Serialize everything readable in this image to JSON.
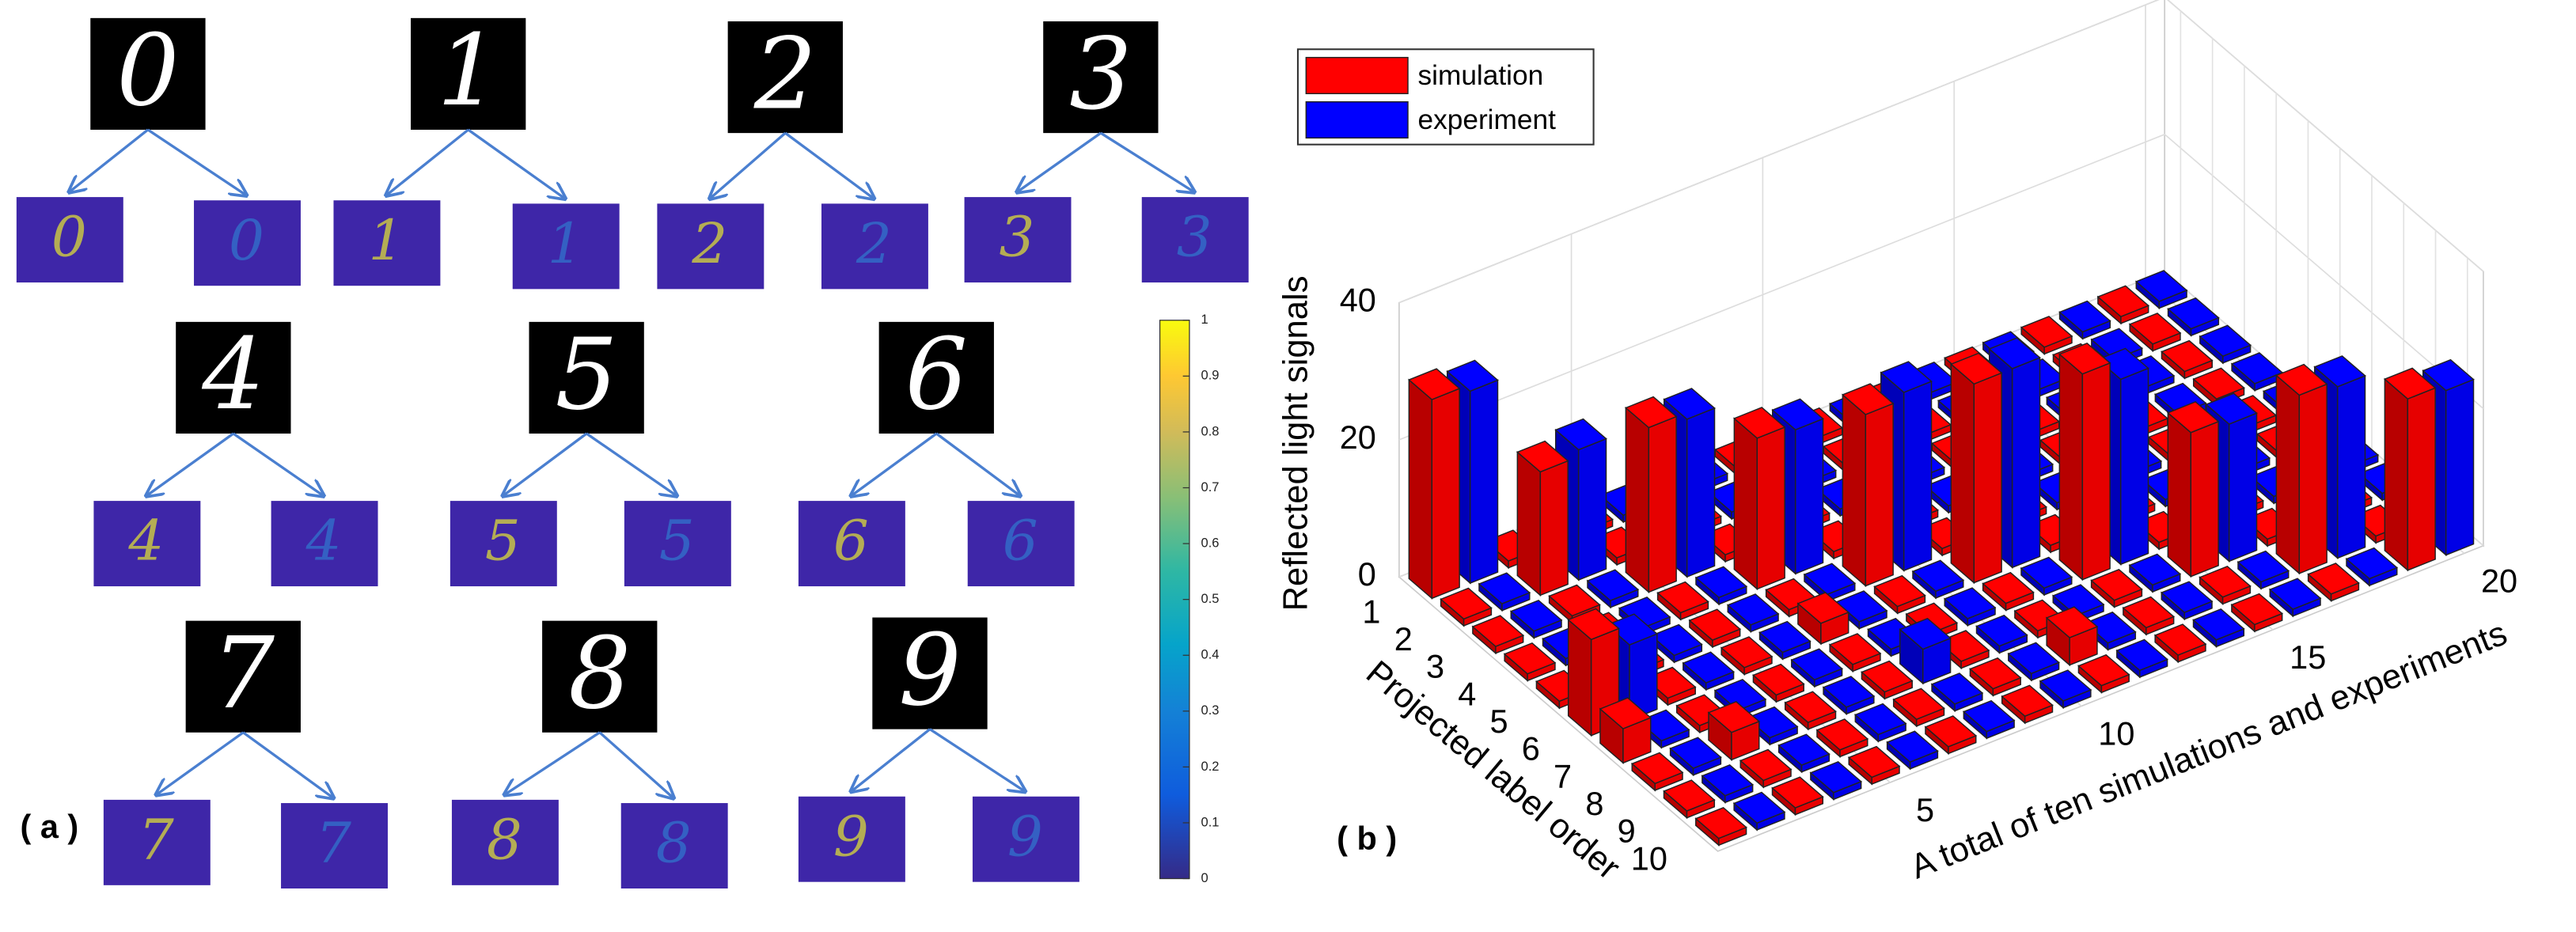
{
  "panel_a": {
    "label": "( a )",
    "digits": [
      "0",
      "1",
      "2",
      "3",
      "4",
      "5",
      "6",
      "7",
      "8",
      "9"
    ],
    "colorbar": {
      "clim": [
        0,
        1
      ],
      "ticks": [
        0,
        0.1,
        0.2,
        0.3,
        0.4,
        0.5,
        0.6,
        0.7,
        0.8,
        0.9,
        1
      ]
    }
  },
  "chart_data": {
    "type": "bar3d",
    "panel_label": "( b )",
    "zlabel": "Reflected light signals",
    "ylabel": "Projected label order",
    "xlabel": "A total of ten simulations and experiments",
    "rows": [
      "1",
      "2",
      "3",
      "4",
      "5",
      "6",
      "7",
      "8",
      "9",
      "10"
    ],
    "xlim": [
      0.5,
      20.5
    ],
    "xticks": [
      5,
      10,
      15,
      20
    ],
    "zlim": [
      0,
      40
    ],
    "zticks": [
      0,
      20,
      40
    ],
    "grid": true,
    "legend": "top-left",
    "series": [
      {
        "name": "simulation",
        "color": "#ff0000",
        "values": [
          [
            29,
            1,
            1,
            1,
            1,
            14,
            5,
            1,
            1,
            1
          ],
          [
            1,
            18,
            1,
            1,
            1,
            1,
            1,
            4,
            1,
            1
          ],
          [
            1,
            1,
            24,
            1,
            1,
            1,
            1,
            1,
            1,
            1
          ],
          [
            1,
            1,
            1,
            22,
            1,
            3,
            1,
            1,
            1,
            1
          ],
          [
            1,
            1,
            1,
            1,
            25,
            1,
            1,
            1,
            1,
            1
          ],
          [
            1,
            1,
            1,
            1,
            1,
            29,
            1,
            1,
            4,
            1
          ],
          [
            1,
            1,
            1,
            1,
            1,
            1,
            30,
            1,
            1,
            1
          ],
          [
            1,
            1,
            1,
            1,
            1,
            1,
            1,
            21,
            1,
            1
          ],
          [
            1,
            1,
            1,
            1,
            1,
            1,
            1,
            1,
            26,
            1
          ],
          [
            1,
            1,
            1,
            1,
            1,
            1,
            1,
            1,
            1,
            25
          ]
        ]
      },
      {
        "name": "experiment",
        "color": "#0000ff",
        "values": [
          [
            28,
            1,
            1,
            1,
            1,
            11,
            1,
            1,
            1,
            1
          ],
          [
            1,
            19,
            1,
            1,
            1,
            1,
            1,
            1,
            1,
            1
          ],
          [
            1,
            1,
            23,
            1,
            1,
            1,
            1,
            1,
            1,
            1
          ],
          [
            1,
            1,
            1,
            21,
            1,
            1,
            1,
            5,
            1,
            1
          ],
          [
            1,
            1,
            1,
            1,
            26,
            1,
            1,
            1,
            1,
            1
          ],
          [
            1,
            1,
            1,
            1,
            1,
            29,
            1,
            1,
            1,
            1
          ],
          [
            1,
            1,
            1,
            1,
            1,
            1,
            27,
            1,
            1,
            1
          ],
          [
            1,
            1,
            1,
            1,
            1,
            1,
            1,
            20,
            1,
            1
          ],
          [
            1,
            1,
            1,
            1,
            1,
            1,
            1,
            1,
            25,
            1
          ],
          [
            1,
            1,
            1,
            1,
            1,
            1,
            1,
            1,
            1,
            24
          ]
        ]
      }
    ]
  }
}
